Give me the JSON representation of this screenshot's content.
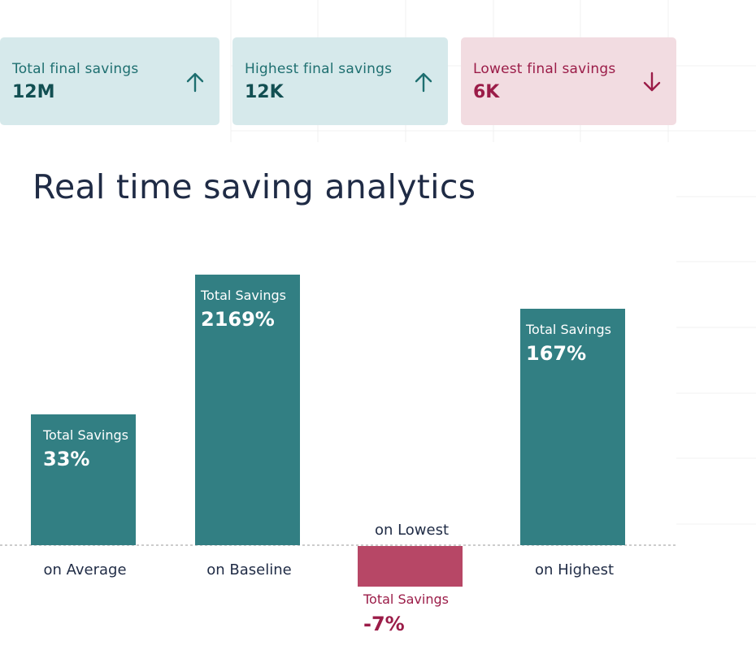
{
  "cards": [
    {
      "label": "Total final savings",
      "value": "12M",
      "trend": "up",
      "icon": "arrow-up-icon"
    },
    {
      "label": "Highest final savings",
      "value": "12K",
      "trend": "up",
      "icon": "arrow-up-icon"
    },
    {
      "label": "Lowest final savings",
      "value": "6K",
      "trend": "down",
      "icon": "arrow-down-icon"
    }
  ],
  "title": "Real time saving analytics",
  "colors": {
    "positive": "#327f83",
    "negative": "#b74766",
    "negative_text": "#9b1c48",
    "card_positive": "#d6e9eb",
    "card_negative": "#f2dce1"
  },
  "chart_data": {
    "type": "bar",
    "categories": [
      "on Average",
      "on Baseline",
      "on Lowest",
      "on Highest"
    ],
    "bar_caption": "Total Savings",
    "value_labels": [
      "33%",
      "2169%",
      "-7%",
      "167%"
    ],
    "values": [
      33,
      2169,
      -7,
      167
    ],
    "baseline": 0,
    "grid": true
  }
}
